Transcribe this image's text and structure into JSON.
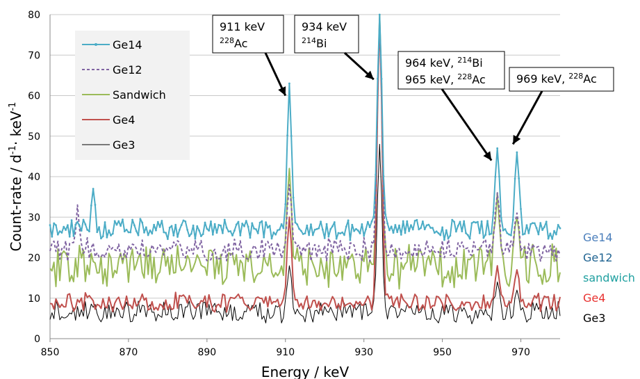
{
  "chart_data": {
    "type": "line",
    "xlabel": "Energy / keV",
    "ylabel": "Count-rate / d-1· keV-1",
    "ylabel_parts": {
      "a": "Count-rate / d",
      "sup1": "-1",
      "b": "· keV",
      "sup2": "-1"
    },
    "xlim": [
      850,
      980
    ],
    "ylim": [
      0,
      80
    ],
    "xticks": [
      "850",
      "870",
      "890",
      "910",
      "930",
      "950",
      "970"
    ],
    "yticks": [
      "0",
      "10",
      "20",
      "30",
      "40",
      "50",
      "60",
      "70",
      "80"
    ],
    "grid": "horizontal",
    "legend_position": "top-left",
    "series": [
      {
        "name": "Ge14",
        "color": "#4bacc6",
        "dash": "solid",
        "markers": true,
        "baseline": 27,
        "noise": 2.2,
        "peaks": [
          [
            861,
            37,
            0.5
          ],
          [
            911,
            63,
            0.55
          ],
          [
            934,
            80,
            0.6
          ],
          [
            964,
            47,
            0.55
          ],
          [
            969,
            46,
            0.55
          ]
        ]
      },
      {
        "name": "Ge12",
        "color": "#8064a2",
        "dash": "dashed",
        "markers": false,
        "baseline": 22,
        "noise": 2.5,
        "peaks": [
          [
            857,
            33,
            0.4
          ],
          [
            911,
            38,
            0.55
          ],
          [
            934,
            78,
            0.6
          ],
          [
            964,
            36,
            0.55
          ],
          [
            969,
            31,
            0.55
          ]
        ]
      },
      {
        "name": "Sandwich",
        "color": "#9bbb59",
        "dash": "solid",
        "markers": false,
        "baseline": 18,
        "noise": 4.5,
        "peaks": [
          [
            911,
            42,
            0.55
          ],
          [
            934,
            80,
            0.6
          ],
          [
            964,
            36,
            0.55
          ],
          [
            969,
            30,
            0.55
          ]
        ]
      },
      {
        "name": "Ge4",
        "color": "#c0504d",
        "dash": "solid",
        "markers": false,
        "baseline": 9,
        "noise": 2.0,
        "peaks": [
          [
            911,
            30,
            0.55
          ],
          [
            934,
            79,
            0.6
          ],
          [
            964,
            18,
            0.55
          ],
          [
            969,
            17,
            0.55
          ]
        ]
      },
      {
        "name": "Ge3",
        "color": "#000000",
        "dash": "solid",
        "markers": false,
        "baseline": 6.5,
        "noise": 2.3,
        "peaks": [
          [
            911,
            18,
            0.55
          ],
          [
            934,
            48,
            0.6
          ],
          [
            964,
            14,
            0.55
          ],
          [
            969,
            12,
            0.55
          ]
        ]
      }
    ],
    "annotations": [
      {
        "lines": [
          {
            "text": "911 keV"
          },
          {
            "sup": "228",
            "text": "Ac"
          }
        ],
        "target": [
          910,
          60
        ]
      },
      {
        "lines": [
          {
            "text": "934 keV"
          },
          {
            "sup": "214",
            "text": "Bi"
          }
        ],
        "target": [
          932.5,
          64
        ]
      },
      {
        "lines": [
          {
            "text": "964 keV, ",
            "sup": "214",
            "after": "Bi"
          },
          {
            "text": "965 keV, ",
            "sup": "228",
            "after": "Ac"
          }
        ],
        "target": [
          962.5,
          44
        ]
      },
      {
        "lines": [
          {
            "text": "969 keV, ",
            "sup": "228",
            "after": "Ac"
          }
        ],
        "target": [
          968,
          48
        ]
      }
    ],
    "side_labels": [
      {
        "text": "Ge14",
        "color": "#4a7ebb"
      },
      {
        "text": "Ge12",
        "color": "#1f6391"
      },
      {
        "text": "sandwich",
        "color": "#20a0a0"
      },
      {
        "text": "Ge4",
        "color": "#e8312f"
      },
      {
        "text": "Ge3",
        "color": "#000000"
      }
    ]
  }
}
